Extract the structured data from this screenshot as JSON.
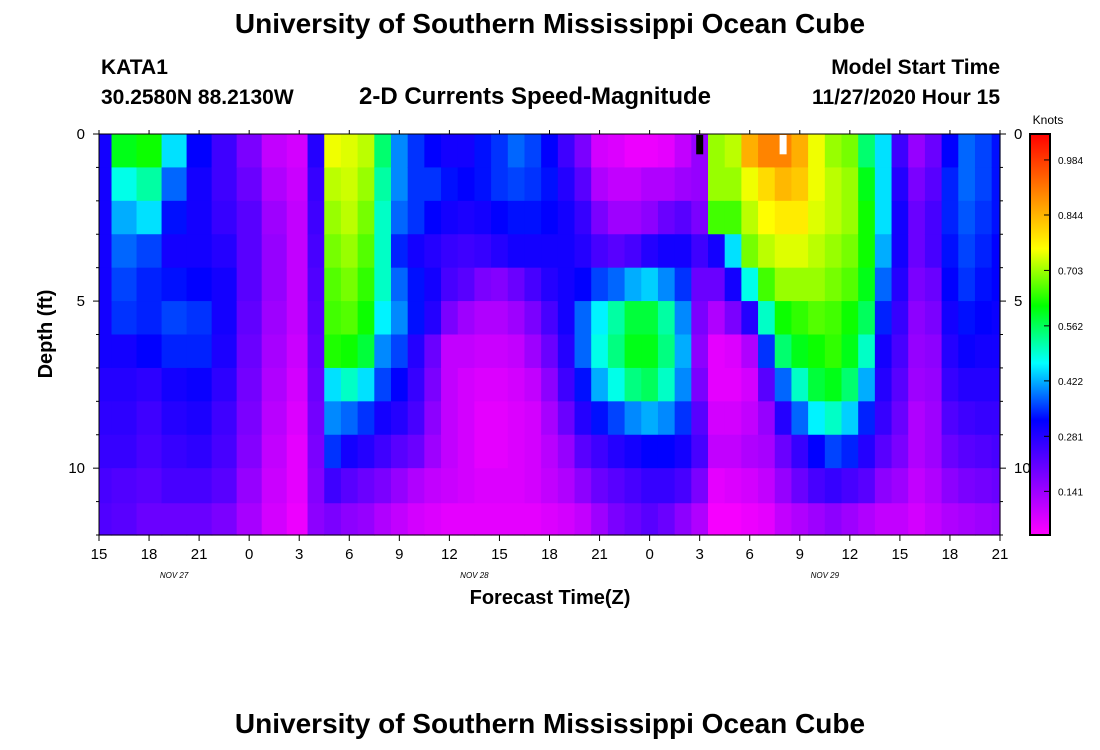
{
  "header": {
    "title": "University of Southern Mississippi Ocean Cube",
    "station": "KATA1",
    "coords": "30.2580N 88.2130W",
    "subtitle": "2-D Currents Speed-Magnitude",
    "model_start_label": "Model Start Time",
    "model_start_value": "11/27/2020 Hour 15"
  },
  "footer": {
    "title": "University of Southern Mississippi Ocean Cube"
  },
  "chart_data": {
    "type": "heatmap",
    "title": "2-D Currents Speed-Magnitude",
    "xlabel": "Forecast Time(Z)",
    "ylabel": "Depth (ft)",
    "x_tick_labels": [
      "15",
      "18",
      "21",
      "0",
      "3",
      "6",
      "9",
      "12",
      "15",
      "18",
      "21",
      "0",
      "3",
      "6",
      "9",
      "12",
      "15",
      "18",
      "21"
    ],
    "date_labels": [
      {
        "label": "NOV  27",
        "after_tick": 1
      },
      {
        "label": "NOV  28",
        "after_tick": 7
      },
      {
        "label": "NOV  29",
        "after_tick": 14
      }
    ],
    "xlim_hours": [
      0,
      54
    ],
    "y_tick_labels": [
      "0",
      "5",
      "10"
    ],
    "y_tick_values": [
      0,
      5,
      10
    ],
    "ylim": [
      0,
      12
    ],
    "y_reversed": true,
    "colorbar": {
      "label": "Knots",
      "tick_labels": [
        "0.141",
        "0.281",
        "0.422",
        "0.562",
        "0.703",
        "0.844",
        "0.984"
      ],
      "tick_values": [
        0.141,
        0.281,
        0.422,
        0.562,
        0.703,
        0.844,
        0.984
      ],
      "range": [
        0.03,
        1.05
      ],
      "colors": [
        "#ff00ff",
        "#7f00ff",
        "#0000ff",
        "#00ffff",
        "#00ff00",
        "#ffff00",
        "#ff8000",
        "#ff0000"
      ]
    },
    "depth_levels_ft": [
      0.5,
      1.5,
      2.5,
      3.5,
      4.5,
      5.5,
      6.5,
      7.5,
      8.5,
      9.5,
      10.5,
      11.6
    ],
    "time_hours": [
      0,
      1.5,
      3,
      4.5,
      6,
      7.5,
      9,
      10.5,
      12,
      13,
      14,
      15,
      16,
      17,
      18,
      19,
      20,
      21,
      22,
      23,
      24,
      25,
      26,
      27,
      28,
      29,
      30,
      31,
      32,
      33,
      34,
      35,
      36,
      37,
      38,
      39,
      40,
      41,
      42,
      43,
      44,
      45,
      46,
      47,
      48,
      49,
      50,
      51,
      52,
      53,
      54
    ],
    "speed_profiles": [
      [
        0.3,
        0.3,
        0.3,
        0.3,
        0.3,
        0.3,
        0.3,
        0.28,
        0.27,
        0.26,
        0.24,
        0.23
      ],
      [
        0.6,
        0.48,
        0.42,
        0.38,
        0.36,
        0.35,
        0.3,
        0.28,
        0.27,
        0.26,
        0.23,
        0.22
      ],
      [
        0.62,
        0.52,
        0.45,
        0.36,
        0.34,
        0.34,
        0.32,
        0.27,
        0.25,
        0.24,
        0.22,
        0.2
      ],
      [
        0.45,
        0.38,
        0.33,
        0.3,
        0.33,
        0.36,
        0.34,
        0.3,
        0.28,
        0.26,
        0.24,
        0.2
      ],
      [
        0.32,
        0.3,
        0.3,
        0.3,
        0.32,
        0.35,
        0.34,
        0.31,
        0.29,
        0.27,
        0.24,
        0.2
      ],
      [
        0.25,
        0.25,
        0.26,
        0.28,
        0.3,
        0.3,
        0.29,
        0.27,
        0.25,
        0.24,
        0.22,
        0.18
      ],
      [
        0.18,
        0.2,
        0.22,
        0.22,
        0.22,
        0.21,
        0.2,
        0.19,
        0.18,
        0.17,
        0.15,
        0.13
      ],
      [
        0.1,
        0.12,
        0.14,
        0.15,
        0.15,
        0.14,
        0.13,
        0.12,
        0.11,
        0.1,
        0.09,
        0.08
      ],
      [
        0.08,
        0.09,
        0.1,
        0.1,
        0.1,
        0.1,
        0.09,
        0.08,
        0.07,
        0.06,
        0.06,
        0.05
      ],
      [
        0.28,
        0.26,
        0.25,
        0.24,
        0.23,
        0.22,
        0.21,
        0.2,
        0.19,
        0.18,
        0.17,
        0.16
      ],
      [
        0.75,
        0.72,
        0.7,
        0.68,
        0.66,
        0.65,
        0.63,
        0.45,
        0.4,
        0.35,
        0.25,
        0.18
      ],
      [
        0.74,
        0.73,
        0.72,
        0.7,
        0.68,
        0.66,
        0.62,
        0.5,
        0.38,
        0.3,
        0.22,
        0.16
      ],
      [
        0.72,
        0.7,
        0.68,
        0.66,
        0.64,
        0.62,
        0.58,
        0.45,
        0.35,
        0.28,
        0.2,
        0.15
      ],
      [
        0.55,
        0.52,
        0.5,
        0.5,
        0.5,
        0.46,
        0.4,
        0.36,
        0.3,
        0.25,
        0.18,
        0.12
      ],
      [
        0.4,
        0.4,
        0.38,
        0.34,
        0.38,
        0.4,
        0.36,
        0.32,
        0.28,
        0.22,
        0.15,
        0.1
      ],
      [
        0.35,
        0.35,
        0.35,
        0.3,
        0.33,
        0.33,
        0.28,
        0.26,
        0.24,
        0.2,
        0.12,
        0.08
      ],
      [
        0.32,
        0.35,
        0.32,
        0.28,
        0.3,
        0.28,
        0.2,
        0.18,
        0.16,
        0.14,
        0.1,
        0.07
      ],
      [
        0.3,
        0.33,
        0.3,
        0.26,
        0.24,
        0.18,
        0.1,
        0.1,
        0.1,
        0.1,
        0.09,
        0.06
      ],
      [
        0.3,
        0.32,
        0.29,
        0.25,
        0.22,
        0.14,
        0.1,
        0.08,
        0.08,
        0.08,
        0.08,
        0.06
      ],
      [
        0.33,
        0.33,
        0.3,
        0.26,
        0.18,
        0.12,
        0.09,
        0.07,
        0.06,
        0.06,
        0.07,
        0.06
      ],
      [
        0.35,
        0.35,
        0.32,
        0.28,
        0.17,
        0.12,
        0.09,
        0.07,
        0.06,
        0.06,
        0.07,
        0.06
      ],
      [
        0.38,
        0.36,
        0.33,
        0.3,
        0.2,
        0.14,
        0.1,
        0.08,
        0.07,
        0.07,
        0.07,
        0.06
      ],
      [
        0.36,
        0.35,
        0.33,
        0.3,
        0.24,
        0.18,
        0.14,
        0.1,
        0.08,
        0.08,
        0.08,
        0.06
      ],
      [
        0.32,
        0.33,
        0.32,
        0.3,
        0.28,
        0.24,
        0.2,
        0.16,
        0.13,
        0.11,
        0.1,
        0.07
      ],
      [
        0.25,
        0.28,
        0.3,
        0.3,
        0.3,
        0.3,
        0.28,
        0.25,
        0.2,
        0.15,
        0.12,
        0.08
      ],
      [
        0.18,
        0.22,
        0.26,
        0.28,
        0.32,
        0.38,
        0.38,
        0.33,
        0.28,
        0.22,
        0.16,
        0.1
      ],
      [
        0.08,
        0.12,
        0.18,
        0.24,
        0.36,
        0.46,
        0.48,
        0.42,
        0.33,
        0.25,
        0.2,
        0.14
      ],
      [
        0.07,
        0.1,
        0.14,
        0.22,
        0.38,
        0.52,
        0.54,
        0.48,
        0.36,
        0.28,
        0.22,
        0.18
      ],
      [
        0.05,
        0.1,
        0.14,
        0.24,
        0.42,
        0.58,
        0.6,
        0.54,
        0.4,
        0.3,
        0.24,
        0.2
      ],
      [
        0.05,
        0.12,
        0.16,
        0.28,
        0.44,
        0.58,
        0.6,
        0.56,
        0.42,
        0.32,
        0.26,
        0.22
      ],
      [
        0.06,
        0.12,
        0.2,
        0.3,
        0.4,
        0.52,
        0.54,
        0.5,
        0.4,
        0.32,
        0.26,
        0.2
      ],
      [
        0.1,
        0.14,
        0.22,
        0.3,
        0.35,
        0.4,
        0.42,
        0.4,
        0.35,
        0.3,
        0.24,
        0.16
      ],
      [
        0.15,
        0.15,
        0.18,
        0.25,
        0.2,
        0.18,
        0.16,
        0.18,
        0.22,
        0.24,
        0.18,
        0.12
      ],
      [
        0.7,
        0.7,
        0.65,
        0.3,
        0.2,
        0.12,
        0.06,
        0.06,
        0.08,
        0.1,
        0.06,
        0.04
      ],
      [
        0.72,
        0.7,
        0.65,
        0.45,
        0.3,
        0.18,
        0.07,
        0.06,
        0.08,
        0.1,
        0.07,
        0.04
      ],
      [
        0.85,
        0.75,
        0.72,
        0.68,
        0.48,
        0.28,
        0.12,
        0.08,
        0.1,
        0.12,
        0.08,
        0.05
      ],
      [
        0.9,
        0.8,
        0.76,
        0.72,
        0.65,
        0.5,
        0.35,
        0.22,
        0.15,
        0.13,
        0.1,
        0.06
      ],
      [
        0.9,
        0.84,
        0.78,
        0.74,
        0.7,
        0.62,
        0.55,
        0.38,
        0.28,
        0.2,
        0.15,
        0.1
      ],
      [
        0.85,
        0.82,
        0.78,
        0.74,
        0.7,
        0.64,
        0.6,
        0.5,
        0.38,
        0.26,
        0.2,
        0.12
      ],
      [
        0.75,
        0.75,
        0.74,
        0.72,
        0.7,
        0.66,
        0.62,
        0.58,
        0.46,
        0.32,
        0.24,
        0.14
      ],
      [
        0.7,
        0.72,
        0.72,
        0.7,
        0.68,
        0.65,
        0.64,
        0.6,
        0.5,
        0.36,
        0.26,
        0.16
      ],
      [
        0.68,
        0.7,
        0.7,
        0.68,
        0.66,
        0.62,
        0.6,
        0.55,
        0.44,
        0.34,
        0.24,
        0.14
      ],
      [
        0.55,
        0.6,
        0.62,
        0.62,
        0.6,
        0.56,
        0.5,
        0.42,
        0.34,
        0.28,
        0.22,
        0.12
      ],
      [
        0.45,
        0.45,
        0.45,
        0.42,
        0.38,
        0.34,
        0.3,
        0.28,
        0.26,
        0.22,
        0.16,
        0.1
      ],
      [
        0.25,
        0.28,
        0.3,
        0.3,
        0.28,
        0.26,
        0.24,
        0.22,
        0.2,
        0.18,
        0.14,
        0.1
      ],
      [
        0.15,
        0.18,
        0.2,
        0.2,
        0.18,
        0.16,
        0.15,
        0.14,
        0.12,
        0.12,
        0.1,
        0.08
      ],
      [
        0.2,
        0.22,
        0.24,
        0.24,
        0.2,
        0.18,
        0.16,
        0.15,
        0.14,
        0.14,
        0.12,
        0.1
      ],
      [
        0.32,
        0.34,
        0.34,
        0.33,
        0.32,
        0.3,
        0.28,
        0.26,
        0.23,
        0.2,
        0.16,
        0.12
      ],
      [
        0.38,
        0.38,
        0.37,
        0.36,
        0.35,
        0.33,
        0.31,
        0.28,
        0.25,
        0.22,
        0.18,
        0.13
      ],
      [
        0.36,
        0.36,
        0.35,
        0.34,
        0.33,
        0.32,
        0.3,
        0.28,
        0.26,
        0.23,
        0.19,
        0.14
      ],
      [
        0.33,
        0.33,
        0.33,
        0.32,
        0.32,
        0.31,
        0.3,
        0.28,
        0.26,
        0.24,
        0.2,
        0.15
      ]
    ],
    "markers": [
      {
        "hour": 36,
        "depth_ft": 0.1,
        "color": "#000000"
      },
      {
        "hour": 41,
        "depth_ft": 0.1,
        "color": "#ffffff"
      }
    ]
  }
}
